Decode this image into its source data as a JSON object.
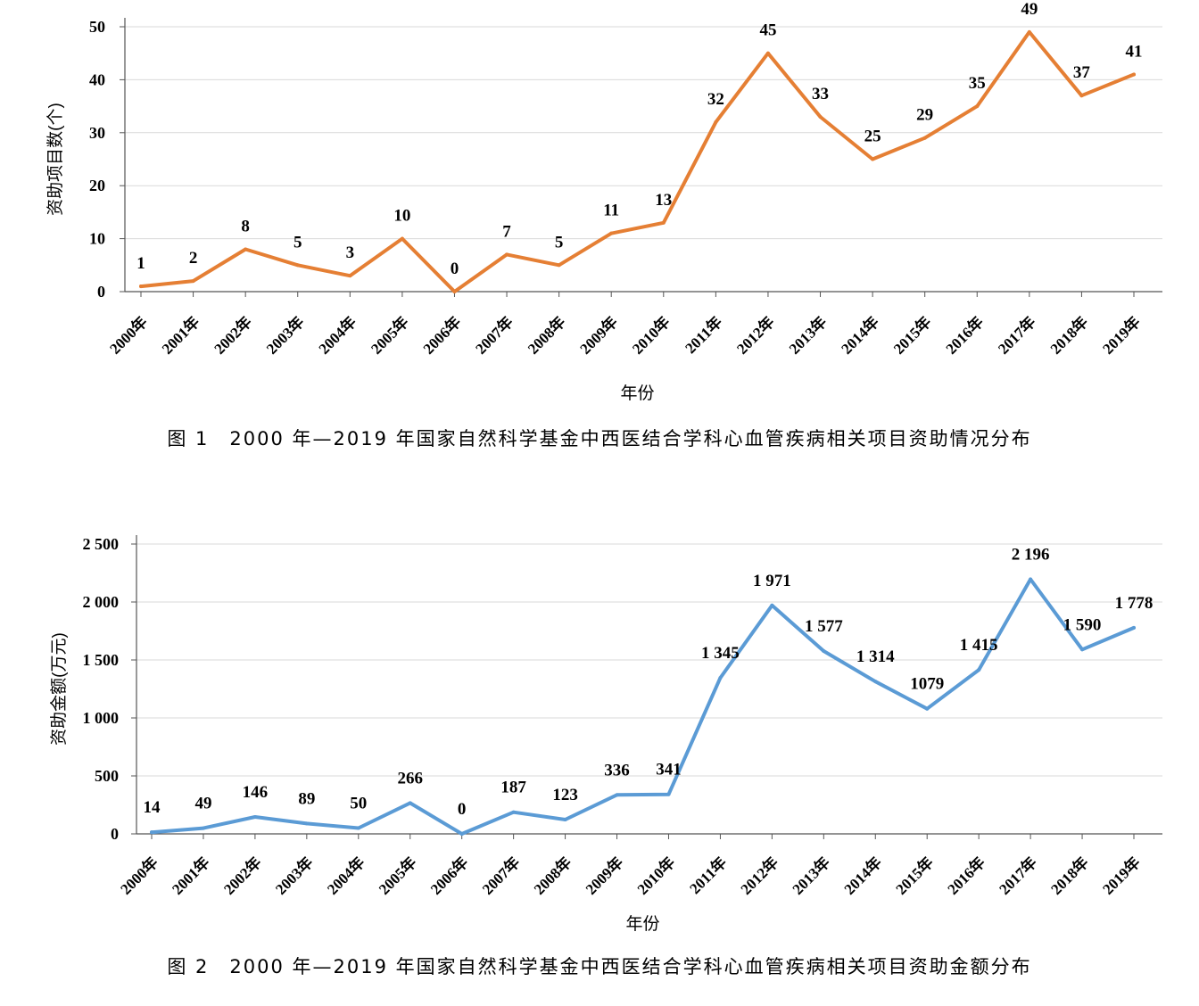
{
  "chart_data": [
    {
      "type": "line",
      "color": "#e57f34",
      "xlabel": "年份",
      "ylabel": "资助项目数(个)",
      "ylim": [
        0,
        50
      ],
      "yticks": [
        "0",
        "10",
        "20",
        "30",
        "40",
        "50"
      ],
      "grid": true,
      "categories": [
        "2000年",
        "2001年",
        "2002年",
        "2003年",
        "2004年",
        "2005年",
        "2006年",
        "2007年",
        "2008年",
        "2009年",
        "2010年",
        "2011年",
        "2012年",
        "2013年",
        "2014年",
        "2015年",
        "2016年",
        "2017年",
        "2018年",
        "2019年"
      ],
      "values": [
        1,
        2,
        8,
        5,
        3,
        10,
        0,
        7,
        5,
        11,
        13,
        32,
        45,
        33,
        25,
        29,
        35,
        49,
        37,
        41
      ],
      "data_labels": [
        "1",
        "2",
        "8",
        "5",
        "3",
        "10",
        "0",
        "7",
        "5",
        "11",
        "13",
        "32",
        "45",
        "33",
        "25",
        "29",
        "35",
        "49",
        "37",
        "41"
      ]
    },
    {
      "type": "line",
      "color": "#5b9bd5",
      "xlabel": "年份",
      "ylabel": "资助金额(万元)",
      "ylim": [
        0,
        2500
      ],
      "yticks": [
        "0",
        "500",
        "1 000",
        "1 500",
        "2 000",
        "2 500"
      ],
      "grid": true,
      "categories": [
        "2000年",
        "2001年",
        "2002年",
        "2003年",
        "2004年",
        "2005年",
        "2006年",
        "2007年",
        "2008年",
        "2009年",
        "2010年",
        "2011年",
        "2012年",
        "2013年",
        "2014年",
        "2015年",
        "2016年",
        "2017年",
        "2018年",
        "2019年"
      ],
      "values": [
        14,
        49,
        146,
        89,
        50,
        266,
        0,
        187,
        123,
        336,
        341,
        1345,
        1971,
        1577,
        1314,
        1079,
        1415,
        2196,
        1590,
        1778
      ],
      "data_labels": [
        "14",
        "49",
        "146",
        "89",
        "50",
        "266",
        "0",
        "187",
        "123",
        "336",
        "341",
        "1 345",
        "1 971",
        "1 577",
        "1 314",
        "1079",
        "1 415",
        "2 196",
        "1 590",
        "1 778"
      ]
    }
  ],
  "captions": {
    "figure1": "图 1　2000 年—2019 年国家自然科学基金中西医结合学科心血管疾病相关项目资助情况分布",
    "figure2": "图 2　2000 年—2019 年国家自然科学基金中西医结合学科心血管疾病相关项目资助金额分布"
  }
}
